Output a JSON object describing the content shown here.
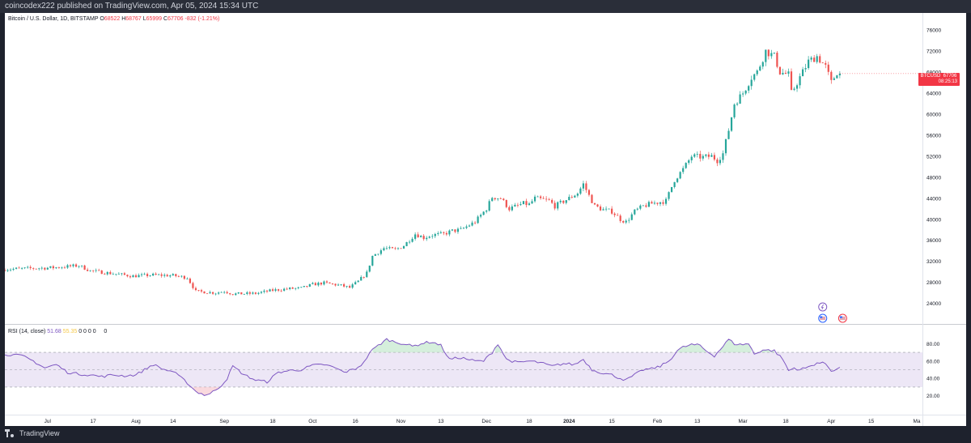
{
  "top_bar": {
    "text": "coincodex222 published on TradingView.com, Apr 05, 2024 15:34 UTC"
  },
  "bottom_bar": {
    "brand": "TradingView"
  },
  "symbol_header": {
    "name": "Bitcoin / U.S. Dollar, 1D, BITSTAMP",
    "open_label": "O",
    "open": "68522",
    "high_label": "H",
    "high": "68767",
    "low_label": "L",
    "low": "65999",
    "close_label": "C",
    "close": "67706",
    "change": "-832 (-1.21%)"
  },
  "price_badge": {
    "symbol": "BTCUSD",
    "price": "67706",
    "countdown": "08:25:13"
  },
  "rsi_header": {
    "label": "RSI (14, close)",
    "value1": "51.68",
    "value2": "55.35",
    "zeros": "0  0  0  0",
    "zero_extra": "0"
  },
  "colors": {
    "up": "#26a69a",
    "down": "#ef5350",
    "rsi_line": "#7e57c2",
    "rsi_band": "#ede7f6",
    "badge": "#f23645"
  },
  "chart_data": [
    {
      "type": "candlestick",
      "title": "Bitcoin / U.S. Dollar, 1D, BITSTAMP",
      "y_ticks": [
        24000,
        28000,
        32000,
        36000,
        40000,
        44000,
        48000,
        52000,
        56000,
        60000,
        64000,
        68000,
        72000,
        76000
      ],
      "ylim": [
        20400,
        77700
      ],
      "x_tick_labels": [
        "Jul",
        "17",
        "Aug",
        "14",
        "Sep",
        "18",
        "Oct",
        "16",
        "Nov",
        "13",
        "Dec",
        "18",
        "2024",
        "15",
        "Feb",
        "13",
        "Mar",
        "18",
        "Apr",
        "15",
        "Ma"
      ],
      "x_tick_days": [
        15,
        31,
        46,
        59,
        77,
        94,
        108,
        123,
        139,
        153,
        169,
        184,
        198,
        213,
        229,
        243,
        259,
        274,
        290,
        304,
        320
      ],
      "close_waypoints": [
        [
          0,
          30500
        ],
        [
          17,
          30800
        ],
        [
          26,
          31200
        ],
        [
          30,
          30200
        ],
        [
          45,
          29200
        ],
        [
          52,
          29400
        ],
        [
          59,
          29300
        ],
        [
          64,
          28900
        ],
        [
          67,
          26300
        ],
        [
          74,
          26000
        ],
        [
          77,
          26300
        ],
        [
          80,
          25800
        ],
        [
          88,
          25900
        ],
        [
          94,
          26500
        ],
        [
          100,
          26800
        ],
        [
          104,
          26900
        ],
        [
          108,
          27600
        ],
        [
          112,
          27900
        ],
        [
          118,
          27400
        ],
        [
          121,
          27000
        ],
        [
          124,
          28200
        ],
        [
          127,
          29800
        ],
        [
          129,
          33000
        ],
        [
          133,
          34500
        ],
        [
          137,
          34200
        ],
        [
          140,
          35000
        ],
        [
          144,
          37200
        ],
        [
          147,
          36500
        ],
        [
          150,
          37000
        ],
        [
          154,
          37200
        ],
        [
          157,
          37800
        ],
        [
          160,
          38000
        ],
        [
          165,
          39500
        ],
        [
          169,
          42000
        ],
        [
          171,
          44200
        ],
        [
          174,
          44000
        ],
        [
          177,
          42000
        ],
        [
          182,
          43000
        ],
        [
          184,
          42800
        ],
        [
          186,
          44000
        ],
        [
          191,
          43500
        ],
        [
          193,
          42500
        ],
        [
          198,
          44000
        ],
        [
          201,
          45000
        ],
        [
          203,
          46700
        ],
        [
          205,
          44500
        ],
        [
          207,
          42500
        ],
        [
          210,
          41800
        ],
        [
          213,
          41500
        ],
        [
          216,
          40000
        ],
        [
          218,
          39500
        ],
        [
          221,
          41500
        ],
        [
          224,
          42500
        ],
        [
          227,
          43000
        ],
        [
          229,
          43200
        ],
        [
          232,
          43500
        ],
        [
          235,
          47500
        ],
        [
          238,
          49500
        ],
        [
          241,
          52000
        ],
        [
          245,
          51800
        ],
        [
          248,
          52000
        ],
        [
          250,
          51200
        ],
        [
          252,
          52500
        ],
        [
          254,
          57000
        ],
        [
          256,
          62000
        ],
        [
          259,
          64000
        ],
        [
          262,
          67000
        ],
        [
          264,
          68000
        ],
        [
          267,
          72000
        ],
        [
          270,
          71000
        ],
        [
          272,
          68000
        ],
        [
          275,
          67500
        ],
        [
          276,
          64000
        ],
        [
          279,
          67000
        ],
        [
          282,
          70000
        ],
        [
          285,
          71000
        ],
        [
          288,
          69000
        ],
        [
          290,
          66000
        ],
        [
          292,
          68000
        ],
        [
          293,
          67706
        ]
      ],
      "last_day": 293
    },
    {
      "type": "line",
      "title": "RSI (14, close)",
      "y_ticks": [
        20,
        40,
        60,
        80
      ],
      "ylim": [
        0,
        100
      ],
      "overbought": 70,
      "middle": 50,
      "oversold": 30,
      "rsi_waypoints": [
        [
          0,
          68
        ],
        [
          6,
          66
        ],
        [
          10,
          60
        ],
        [
          14,
          52
        ],
        [
          18,
          56
        ],
        [
          22,
          47
        ],
        [
          26,
          45
        ],
        [
          30,
          44
        ],
        [
          34,
          42
        ],
        [
          38,
          44
        ],
        [
          42,
          43
        ],
        [
          46,
          44
        ],
        [
          52,
          56
        ],
        [
          56,
          50
        ],
        [
          59,
          48
        ],
        [
          64,
          35
        ],
        [
          67,
          25
        ],
        [
          70,
          21
        ],
        [
          72,
          22
        ],
        [
          76,
          32
        ],
        [
          78,
          40
        ],
        [
          80,
          54
        ],
        [
          84,
          44
        ],
        [
          88,
          38
        ],
        [
          92,
          36
        ],
        [
          96,
          47
        ],
        [
          100,
          49
        ],
        [
          104,
          50
        ],
        [
          108,
          55
        ],
        [
          112,
          56
        ],
        [
          116,
          52
        ],
        [
          119,
          47
        ],
        [
          123,
          51
        ],
        [
          126,
          58
        ],
        [
          128,
          70
        ],
        [
          131,
          78
        ],
        [
          134,
          85
        ],
        [
          137,
          82
        ],
        [
          140,
          80
        ],
        [
          143,
          77
        ],
        [
          147,
          81
        ],
        [
          150,
          82
        ],
        [
          153,
          78
        ],
        [
          156,
          62
        ],
        [
          160,
          64
        ],
        [
          165,
          60
        ],
        [
          168,
          60
        ],
        [
          171,
          70
        ],
        [
          173,
          80
        ],
        [
          176,
          62
        ],
        [
          180,
          58
        ],
        [
          184,
          60
        ],
        [
          188,
          58
        ],
        [
          192,
          54
        ],
        [
          196,
          57
        ],
        [
          200,
          56
        ],
        [
          203,
          62
        ],
        [
          206,
          50
        ],
        [
          210,
          46
        ],
        [
          213,
          44
        ],
        [
          216,
          40
        ],
        [
          218,
          38
        ],
        [
          221,
          44
        ],
        [
          224,
          50
        ],
        [
          227,
          51
        ],
        [
          230,
          54
        ],
        [
          233,
          60
        ],
        [
          236,
          72
        ],
        [
          238,
          76
        ],
        [
          241,
          79
        ],
        [
          244,
          78
        ],
        [
          246,
          72
        ],
        [
          249,
          66
        ],
        [
          252,
          77
        ],
        [
          254,
          85
        ],
        [
          256,
          80
        ],
        [
          258,
          79
        ],
        [
          261,
          80
        ],
        [
          263,
          68
        ],
        [
          266,
          73
        ],
        [
          270,
          72
        ],
        [
          273,
          62
        ],
        [
          275,
          49
        ],
        [
          277,
          52
        ],
        [
          279,
          50
        ],
        [
          282,
          53
        ],
        [
          285,
          58
        ],
        [
          288,
          57
        ],
        [
          290,
          49
        ],
        [
          292,
          51
        ],
        [
          293,
          52
        ]
      ]
    }
  ],
  "chart_overlays": {
    "flash_icon": "lightning-icon",
    "flag_icons": [
      "us-flag-icon",
      "us-flag-icon"
    ]
  }
}
